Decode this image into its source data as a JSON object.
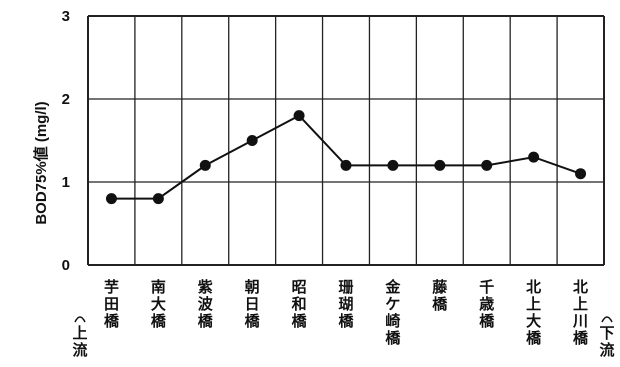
{
  "chart_data": {
    "type": "line",
    "categories": [
      "芋田橋",
      "南大橋",
      "紫波橋",
      "朝日橋",
      "昭和橋",
      "珊瑚橋",
      "金ケ崎橋",
      "藤橋",
      "千歳橋",
      "北上大橋",
      "北上川橋"
    ],
    "values": [
      0.8,
      0.8,
      1.2,
      1.5,
      1.8,
      1.2,
      1.2,
      1.2,
      1.2,
      1.3,
      1.1
    ],
    "ylabel": "BOD75%値 (mg/l)",
    "ylim": [
      0,
      3
    ],
    "yticks": [
      0,
      1,
      2,
      3
    ],
    "grid": true,
    "upstream_label": "上流",
    "downstream_label": "下流",
    "colors": {
      "line": "#111111",
      "grid": "#222222",
      "marker": "#111111"
    }
  }
}
